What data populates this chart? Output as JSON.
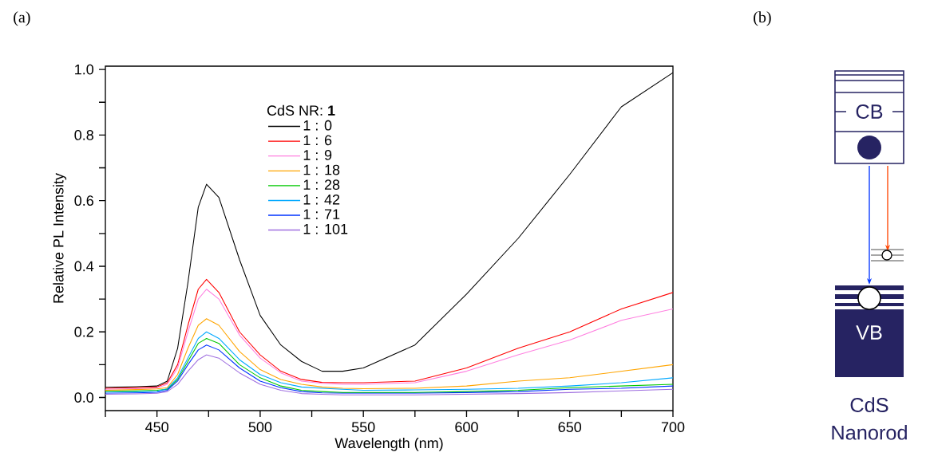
{
  "chart_data": [
    {
      "type": "line",
      "title": "(a)",
      "xlabel": "Wavelength (nm)",
      "ylabel": "Relative PL Intensity",
      "legend_title": "CdS NR: **1**",
      "x": [
        425,
        440,
        450,
        455,
        460,
        465,
        470,
        474,
        480,
        490,
        500,
        510,
        520,
        530,
        540,
        550,
        575,
        600,
        625,
        650,
        675,
        700
      ],
      "series": [
        {
          "name": "1 : 0",
          "color": "#000000",
          "values": [
            0.031,
            0.033,
            0.035,
            0.05,
            0.15,
            0.35,
            0.58,
            0.65,
            0.61,
            0.42,
            0.25,
            0.16,
            0.11,
            0.08,
            0.08,
            0.09,
            0.16,
            0.315,
            0.485,
            0.68,
            0.886,
            0.99
          ]
        },
        {
          "name": "1 : 6",
          "color": "#ff0000",
          "values": [
            0.028,
            0.03,
            0.032,
            0.045,
            0.1,
            0.22,
            0.33,
            0.36,
            0.32,
            0.2,
            0.13,
            0.08,
            0.055,
            0.046,
            0.045,
            0.045,
            0.05,
            0.09,
            0.15,
            0.2,
            0.27,
            0.32
          ]
        },
        {
          "name": "1 : 9",
          "color": "#ff80e0",
          "values": [
            0.025,
            0.027,
            0.029,
            0.04,
            0.09,
            0.2,
            0.3,
            0.33,
            0.3,
            0.19,
            0.12,
            0.075,
            0.05,
            0.043,
            0.04,
            0.04,
            0.045,
            0.08,
            0.13,
            0.175,
            0.235,
            0.27
          ]
        },
        {
          "name": "1 : 18",
          "color": "#ffa500",
          "values": [
            0.022,
            0.024,
            0.026,
            0.03,
            0.07,
            0.15,
            0.22,
            0.24,
            0.22,
            0.14,
            0.085,
            0.055,
            0.04,
            0.032,
            0.028,
            0.027,
            0.028,
            0.035,
            0.05,
            0.06,
            0.08,
            0.1
          ]
        },
        {
          "name": "1 : 28",
          "color": "#00c800",
          "values": [
            0.019,
            0.02,
            0.022,
            0.025,
            0.055,
            0.11,
            0.165,
            0.18,
            0.165,
            0.1,
            0.06,
            0.035,
            0.022,
            0.018,
            0.015,
            0.015,
            0.015,
            0.018,
            0.022,
            0.03,
            0.035,
            0.04
          ]
        },
        {
          "name": "1 : 42",
          "color": "#00a8ff",
          "values": [
            0.016,
            0.017,
            0.019,
            0.027,
            0.06,
            0.12,
            0.18,
            0.2,
            0.18,
            0.115,
            0.07,
            0.045,
            0.032,
            0.028,
            0.025,
            0.022,
            0.023,
            0.025,
            0.028,
            0.035,
            0.045,
            0.06
          ]
        },
        {
          "name": "1 : 71",
          "color": "#0033ff",
          "values": [
            0.013,
            0.014,
            0.016,
            0.022,
            0.05,
            0.1,
            0.145,
            0.16,
            0.145,
            0.09,
            0.05,
            0.03,
            0.018,
            0.014,
            0.013,
            0.013,
            0.013,
            0.015,
            0.018,
            0.025,
            0.028,
            0.035
          ]
        },
        {
          "name": "1 : 101",
          "color": "#a070e0",
          "values": [
            0.01,
            0.011,
            0.013,
            0.018,
            0.04,
            0.08,
            0.115,
            0.13,
            0.12,
            0.075,
            0.04,
            0.022,
            0.012,
            0.01,
            0.008,
            0.008,
            0.008,
            0.01,
            0.012,
            0.015,
            0.02,
            0.025
          ]
        }
      ],
      "xlim": [
        425,
        700
      ],
      "xticks": [
        {
          "value": 425,
          "label": null
        },
        450,
        {
          "value": 475,
          "label": null
        },
        500,
        {
          "value": 525,
          "label": null
        },
        550,
        {
          "value": 575,
          "label": null
        },
        600,
        {
          "value": 625,
          "label": null
        },
        650,
        {
          "value": 675,
          "label": null
        },
        700
      ],
      "ylim": [
        -0.04,
        1.01
      ],
      "yticks": [
        {
          "value": 0,
          "label": "0.0"
        },
        {
          "value": 0.1,
          "label": null
        },
        {
          "value": 0.2,
          "label": "0.2"
        },
        {
          "value": 0.3,
          "label": null
        },
        {
          "value": 0.4,
          "label": "0.4"
        },
        {
          "value": 0.5,
          "label": null
        },
        {
          "value": 0.6,
          "label": "0.6"
        },
        {
          "value": 0.7,
          "label": null
        },
        {
          "value": 0.8,
          "label": "0.8"
        },
        {
          "value": 0.9,
          "label": null
        },
        {
          "value": 1.0,
          "label": "1.0"
        }
      ],
      "legend": "top left",
      "grid": false,
      "marker": "none",
      "line_style": "solid"
    },
    {
      "type": "other",
      "title": "(b)",
      "annotations": [
        "CB",
        "VB",
        "CdS Nanorod"
      ]
    }
  ]
}
